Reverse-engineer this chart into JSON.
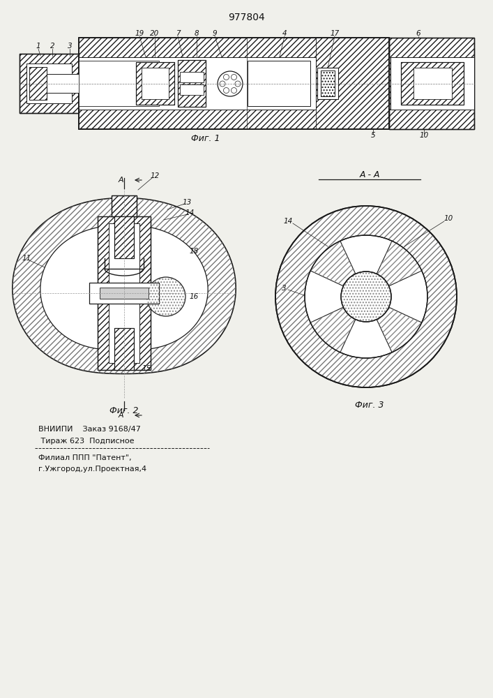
{
  "title": "977804",
  "fig1_label": "Фиг. 1",
  "fig2_label": "Фиг. 2",
  "fig3_label": "Фиг. 3",
  "section_label": "A - A",
  "bottom_text_line1": "ВНИИПИ    Заказ 9168/47",
  "bottom_text_line2": " Тираж 623  Подписное",
  "bottom_text_line3": "Филиал ППП \"Патент\",",
  "bottom_text_line4": "г.Ужгород,ул.Проектная,4",
  "bg_color": "#f0f0eb",
  "line_color": "#1a1a1a",
  "text_color": "#111111"
}
